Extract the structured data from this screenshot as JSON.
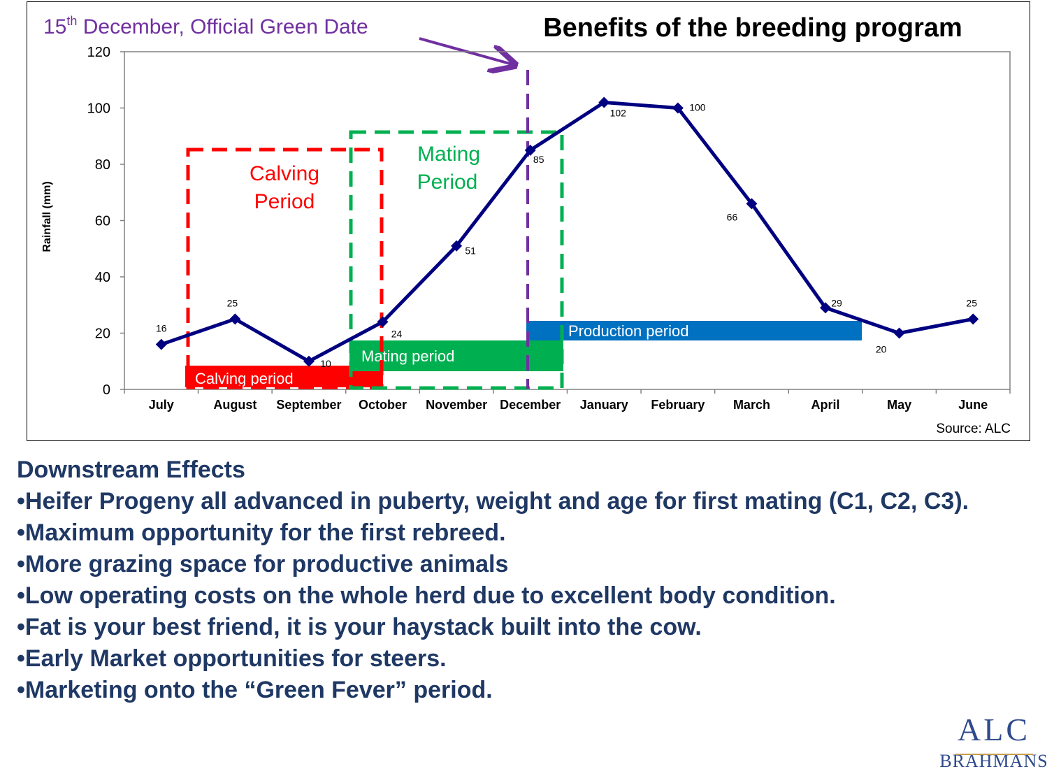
{
  "chart_data": {
    "type": "line",
    "title": "Benefits of the breeding program",
    "annotation": {
      "line1": "15",
      "sup": "th",
      "line2": " December,  Official Green Date"
    },
    "ylabel": "Rainfall (mm)",
    "xlabel": "",
    "ylim": [
      0,
      120
    ],
    "yticks": [
      0,
      20,
      40,
      60,
      80,
      100,
      120
    ],
    "categories": [
      "July",
      "August",
      "September",
      "October",
      "November",
      "December",
      "January",
      "February",
      "March",
      "April",
      "May",
      "June"
    ],
    "series": [
      {
        "values": [
          16,
          25,
          10,
          24,
          51,
          85,
          102,
          100,
          66,
          29,
          20,
          25
        ],
        "color": "#000080"
      }
    ],
    "data_labels": [
      "16",
      "25",
      "10",
      "24",
      "51",
      "85",
      "102",
      "100",
      "66",
      "29",
      "20",
      "25"
    ],
    "source": "Source: ALC",
    "period_bars": [
      {
        "label": "Calving period",
        "color": "#ff0000"
      },
      {
        "label": "Mating period",
        "color": "#00b050"
      },
      {
        "label": "Production period",
        "color": "#0070c0"
      }
    ],
    "period_boxes": [
      {
        "line1": "Calving",
        "line2": "Period",
        "color": "#ff0000"
      },
      {
        "line1": "Mating",
        "line2": "Period",
        "color": "#00b050"
      }
    ],
    "marker_color": "#7030a0",
    "grid": false
  },
  "effects": {
    "heading": "Downstream Effects",
    "items": [
      "•Heifer Progeny all advanced in puberty, weight and age for first mating (C1, C2, C3).",
      "•Maximum opportunity for the first rebreed.",
      "•More grazing space for productive animals",
      "•Low operating costs on the whole herd due to excellent body condition.",
      "•Fat is your best friend, it is your haystack built into the cow.",
      "•Early Market opportunities for steers.",
      "•Marketing onto the “Green Fever” period."
    ]
  },
  "logo": {
    "main": "ALC",
    "sub": "BRAHMANS"
  },
  "colors": {
    "text_dark_blue": "#1f3864",
    "line": "#000080"
  }
}
